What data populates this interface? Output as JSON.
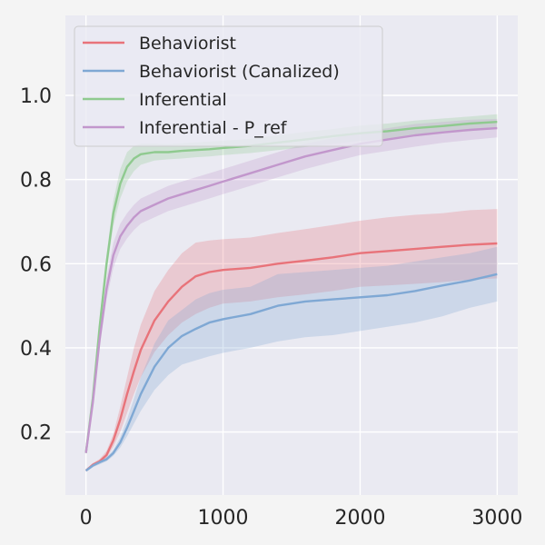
{
  "chart_data": {
    "type": "line",
    "title": "",
    "xlabel": "",
    "ylabel": "",
    "xlim": [
      -150,
      3150
    ],
    "ylim": [
      0.05,
      1.19
    ],
    "xticks": [
      0,
      1000,
      2000,
      3000
    ],
    "xtick_labels": [
      "0",
      "1000",
      "2000",
      "3000"
    ],
    "yticks": [
      0.2,
      0.4,
      0.6,
      0.8,
      1.0
    ],
    "ytick_labels": [
      "0.2",
      "0.4",
      "0.6",
      "0.8",
      "1.0"
    ],
    "grid": true,
    "legend_position": "top-left",
    "plot_background": "#eaeaf2",
    "x": [
      0,
      50,
      100,
      150,
      200,
      250,
      300,
      350,
      400,
      500,
      600,
      700,
      800,
      900,
      1000,
      1200,
      1400,
      1600,
      1800,
      2000,
      2200,
      2400,
      2600,
      2800,
      3000
    ],
    "series": [
      {
        "name": "Behaviorist",
        "color": "#e8737a",
        "values": [
          0.108,
          0.122,
          0.13,
          0.145,
          0.18,
          0.23,
          0.29,
          0.345,
          0.395,
          0.465,
          0.51,
          0.545,
          0.57,
          0.58,
          0.585,
          0.59,
          0.6,
          0.607,
          0.615,
          0.625,
          0.63,
          0.635,
          0.64,
          0.645,
          0.648
        ],
        "lower": [
          0.105,
          0.118,
          0.125,
          0.138,
          0.165,
          0.2,
          0.245,
          0.29,
          0.33,
          0.39,
          0.43,
          0.46,
          0.48,
          0.495,
          0.505,
          0.51,
          0.52,
          0.527,
          0.535,
          0.545,
          0.548,
          0.552,
          0.556,
          0.562,
          0.565
        ],
        "upper": [
          0.11,
          0.126,
          0.136,
          0.155,
          0.195,
          0.26,
          0.33,
          0.4,
          0.455,
          0.535,
          0.585,
          0.625,
          0.65,
          0.655,
          0.658,
          0.662,
          0.673,
          0.682,
          0.692,
          0.702,
          0.71,
          0.716,
          0.72,
          0.727,
          0.73
        ]
      },
      {
        "name": "Behaviorist (Canalized)",
        "color": "#7fa8d4",
        "values": [
          0.108,
          0.12,
          0.128,
          0.135,
          0.15,
          0.175,
          0.21,
          0.25,
          0.29,
          0.355,
          0.4,
          0.428,
          0.445,
          0.46,
          0.468,
          0.48,
          0.5,
          0.51,
          0.515,
          0.52,
          0.525,
          0.535,
          0.548,
          0.56,
          0.575
        ],
        "lower": [
          0.105,
          0.116,
          0.123,
          0.13,
          0.143,
          0.163,
          0.19,
          0.22,
          0.25,
          0.3,
          0.335,
          0.36,
          0.37,
          0.38,
          0.388,
          0.4,
          0.415,
          0.425,
          0.43,
          0.44,
          0.45,
          0.46,
          0.475,
          0.495,
          0.51
        ],
        "upper": [
          0.11,
          0.124,
          0.133,
          0.14,
          0.157,
          0.187,
          0.23,
          0.28,
          0.33,
          0.41,
          0.465,
          0.49,
          0.515,
          0.53,
          0.538,
          0.545,
          0.575,
          0.58,
          0.585,
          0.59,
          0.595,
          0.605,
          0.615,
          0.625,
          0.64
        ]
      },
      {
        "name": "Inferential",
        "color": "#8fca8f",
        "values": [
          0.15,
          0.28,
          0.45,
          0.6,
          0.72,
          0.79,
          0.83,
          0.85,
          0.86,
          0.865,
          0.865,
          0.868,
          0.87,
          0.872,
          0.875,
          0.88,
          0.888,
          0.895,
          0.903,
          0.91,
          0.915,
          0.922,
          0.927,
          0.933,
          0.937
        ],
        "lower": [
          0.15,
          0.27,
          0.43,
          0.58,
          0.69,
          0.755,
          0.795,
          0.82,
          0.835,
          0.845,
          0.848,
          0.85,
          0.853,
          0.855,
          0.858,
          0.863,
          0.87,
          0.877,
          0.885,
          0.892,
          0.897,
          0.903,
          0.91,
          0.915,
          0.92
        ],
        "upper": [
          0.15,
          0.29,
          0.47,
          0.62,
          0.75,
          0.825,
          0.865,
          0.88,
          0.885,
          0.885,
          0.884,
          0.886,
          0.888,
          0.89,
          0.892,
          0.897,
          0.905,
          0.913,
          0.92,
          0.928,
          0.933,
          0.94,
          0.945,
          0.95,
          0.955
        ]
      },
      {
        "name": "Inferential - P_ref",
        "color": "#c297cc",
        "values": [
          0.15,
          0.27,
          0.42,
          0.54,
          0.62,
          0.665,
          0.69,
          0.71,
          0.725,
          0.74,
          0.755,
          0.765,
          0.775,
          0.785,
          0.795,
          0.815,
          0.835,
          0.855,
          0.87,
          0.885,
          0.895,
          0.905,
          0.912,
          0.918,
          0.922
        ],
        "lower": [
          0.15,
          0.26,
          0.4,
          0.515,
          0.59,
          0.635,
          0.66,
          0.68,
          0.695,
          0.71,
          0.725,
          0.735,
          0.745,
          0.755,
          0.765,
          0.785,
          0.805,
          0.825,
          0.842,
          0.858,
          0.868,
          0.878,
          0.887,
          0.894,
          0.9
        ],
        "upper": [
          0.15,
          0.28,
          0.44,
          0.565,
          0.65,
          0.695,
          0.72,
          0.74,
          0.755,
          0.77,
          0.785,
          0.795,
          0.805,
          0.815,
          0.825,
          0.845,
          0.865,
          0.885,
          0.898,
          0.912,
          0.922,
          0.932,
          0.937,
          0.942,
          0.944
        ]
      }
    ]
  }
}
